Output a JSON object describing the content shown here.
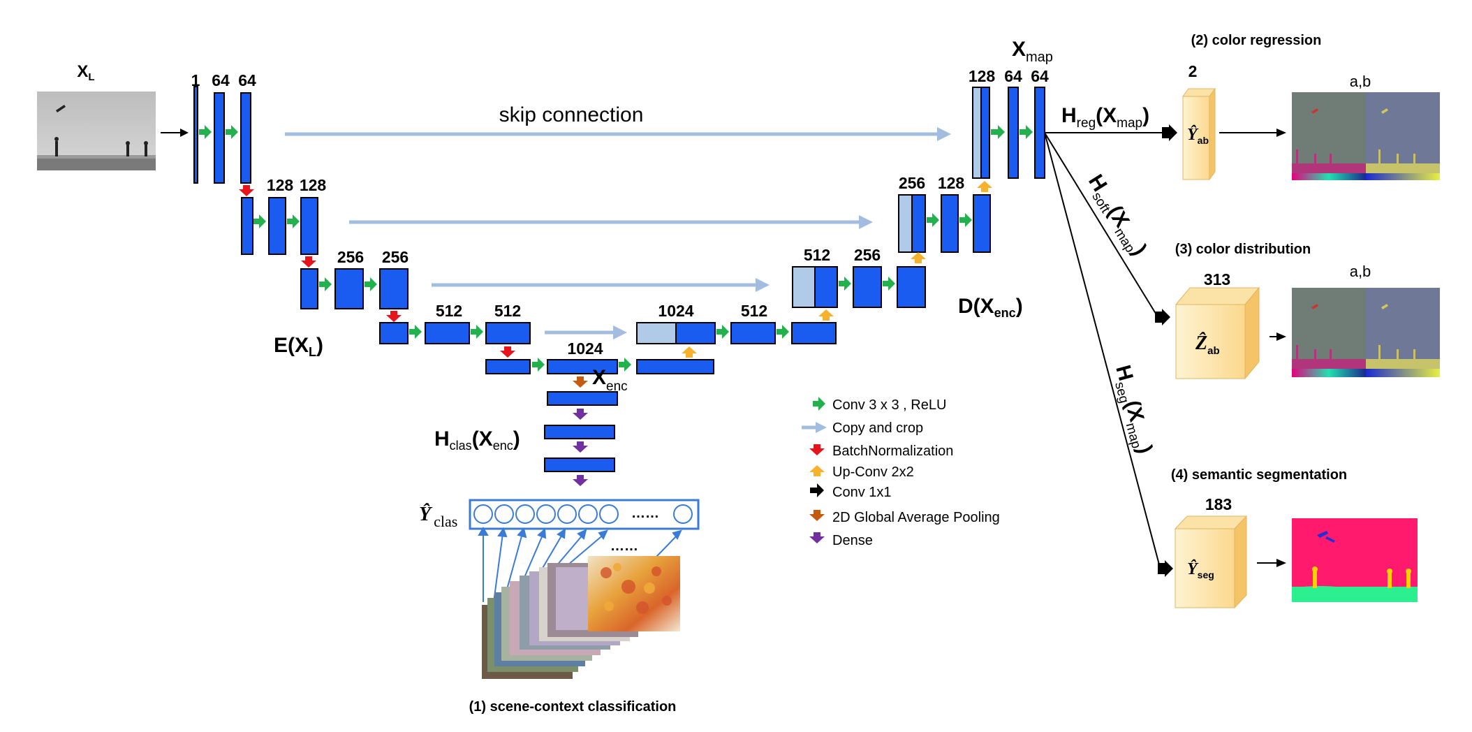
{
  "input": {
    "label": "X",
    "sub": "L"
  },
  "channels": {
    "l1": [
      "1",
      "64",
      "64"
    ],
    "l2": [
      "128",
      "128"
    ],
    "l3": [
      "256",
      "256"
    ],
    "l4": [
      "512",
      "512"
    ],
    "bottleneck": "1024",
    "u4": [
      "1024",
      "512"
    ],
    "u3": [
      "512",
      "256"
    ],
    "u2": [
      "256",
      "128"
    ],
    "u1": [
      "128",
      "64",
      "64"
    ]
  },
  "skip_label": "skip connection",
  "encoder": {
    "pre": "E(",
    "var": "X",
    "sub": "L",
    "post": ")"
  },
  "decoder": {
    "pre": "D(",
    "var": "X",
    "sub": "enc",
    "post": ")"
  },
  "xenc": {
    "var": "X",
    "sub": "enc"
  },
  "xmap": {
    "var": "X",
    "sub": "map"
  },
  "hclas": {
    "h": "H",
    "sub": "clas",
    "arg": "(X",
    "argsub": "enc",
    "close": ")"
  },
  "yclas": {
    "y": "Ŷ",
    "sub": "clas",
    "dots": "……"
  },
  "images_dots": "……",
  "heads": {
    "reg": {
      "h": "H",
      "sub": "reg",
      "arg": "(X",
      "argsub": "map",
      "close": ")"
    },
    "soft": {
      "h": "H",
      "sub": "soft",
      "arg": "(X",
      "argsub": "map",
      "close": ")"
    },
    "seg": {
      "h": "H",
      "sub": "seg",
      "arg": "(X",
      "argsub": "map",
      "close": ")"
    }
  },
  "outputs": {
    "regression": {
      "title": "(2) color regression",
      "channels": "2",
      "var": "Ŷ",
      "sub": "ab",
      "ab_label": "a,b"
    },
    "distribution": {
      "title": "(3) color distribution",
      "channels": "313",
      "var": "Ẑ",
      "sub": "ab",
      "ab_label": "a,b"
    },
    "segmentation": {
      "title": "(4) semantic segmentation",
      "channels": "183",
      "var": "Ŷ",
      "sub": "seg"
    }
  },
  "scene_title": "(1) scene-context classification",
  "legend": [
    {
      "icon": "green-arrow-icon",
      "color": "#22b14c",
      "label": "Conv 3 x 3 , ReLU"
    },
    {
      "icon": "lightblue-arrow-icon",
      "color": "#a3bde0",
      "label": "Copy and crop"
    },
    {
      "icon": "red-arrow-icon",
      "color": "#e8141c",
      "label": "BatchNormalization"
    },
    {
      "icon": "yellow-arrow-icon",
      "color": "#f7b12c",
      "label": "Up-Conv 2x2"
    },
    {
      "icon": "black-arrow-icon",
      "color": "#000000",
      "label": "Conv 1x1"
    },
    {
      "icon": "brown-arrow-icon",
      "color": "#c55a11",
      "label": "2D Global Average Pooling"
    },
    {
      "icon": "purple-arrow-icon",
      "color": "#7030a0",
      "label": "Dense"
    }
  ],
  "colors": {
    "block": "#1a5cf0",
    "block_light": "#b0cbe8",
    "cube_front": "#fde3a7",
    "cube_side": "#f5c468"
  }
}
